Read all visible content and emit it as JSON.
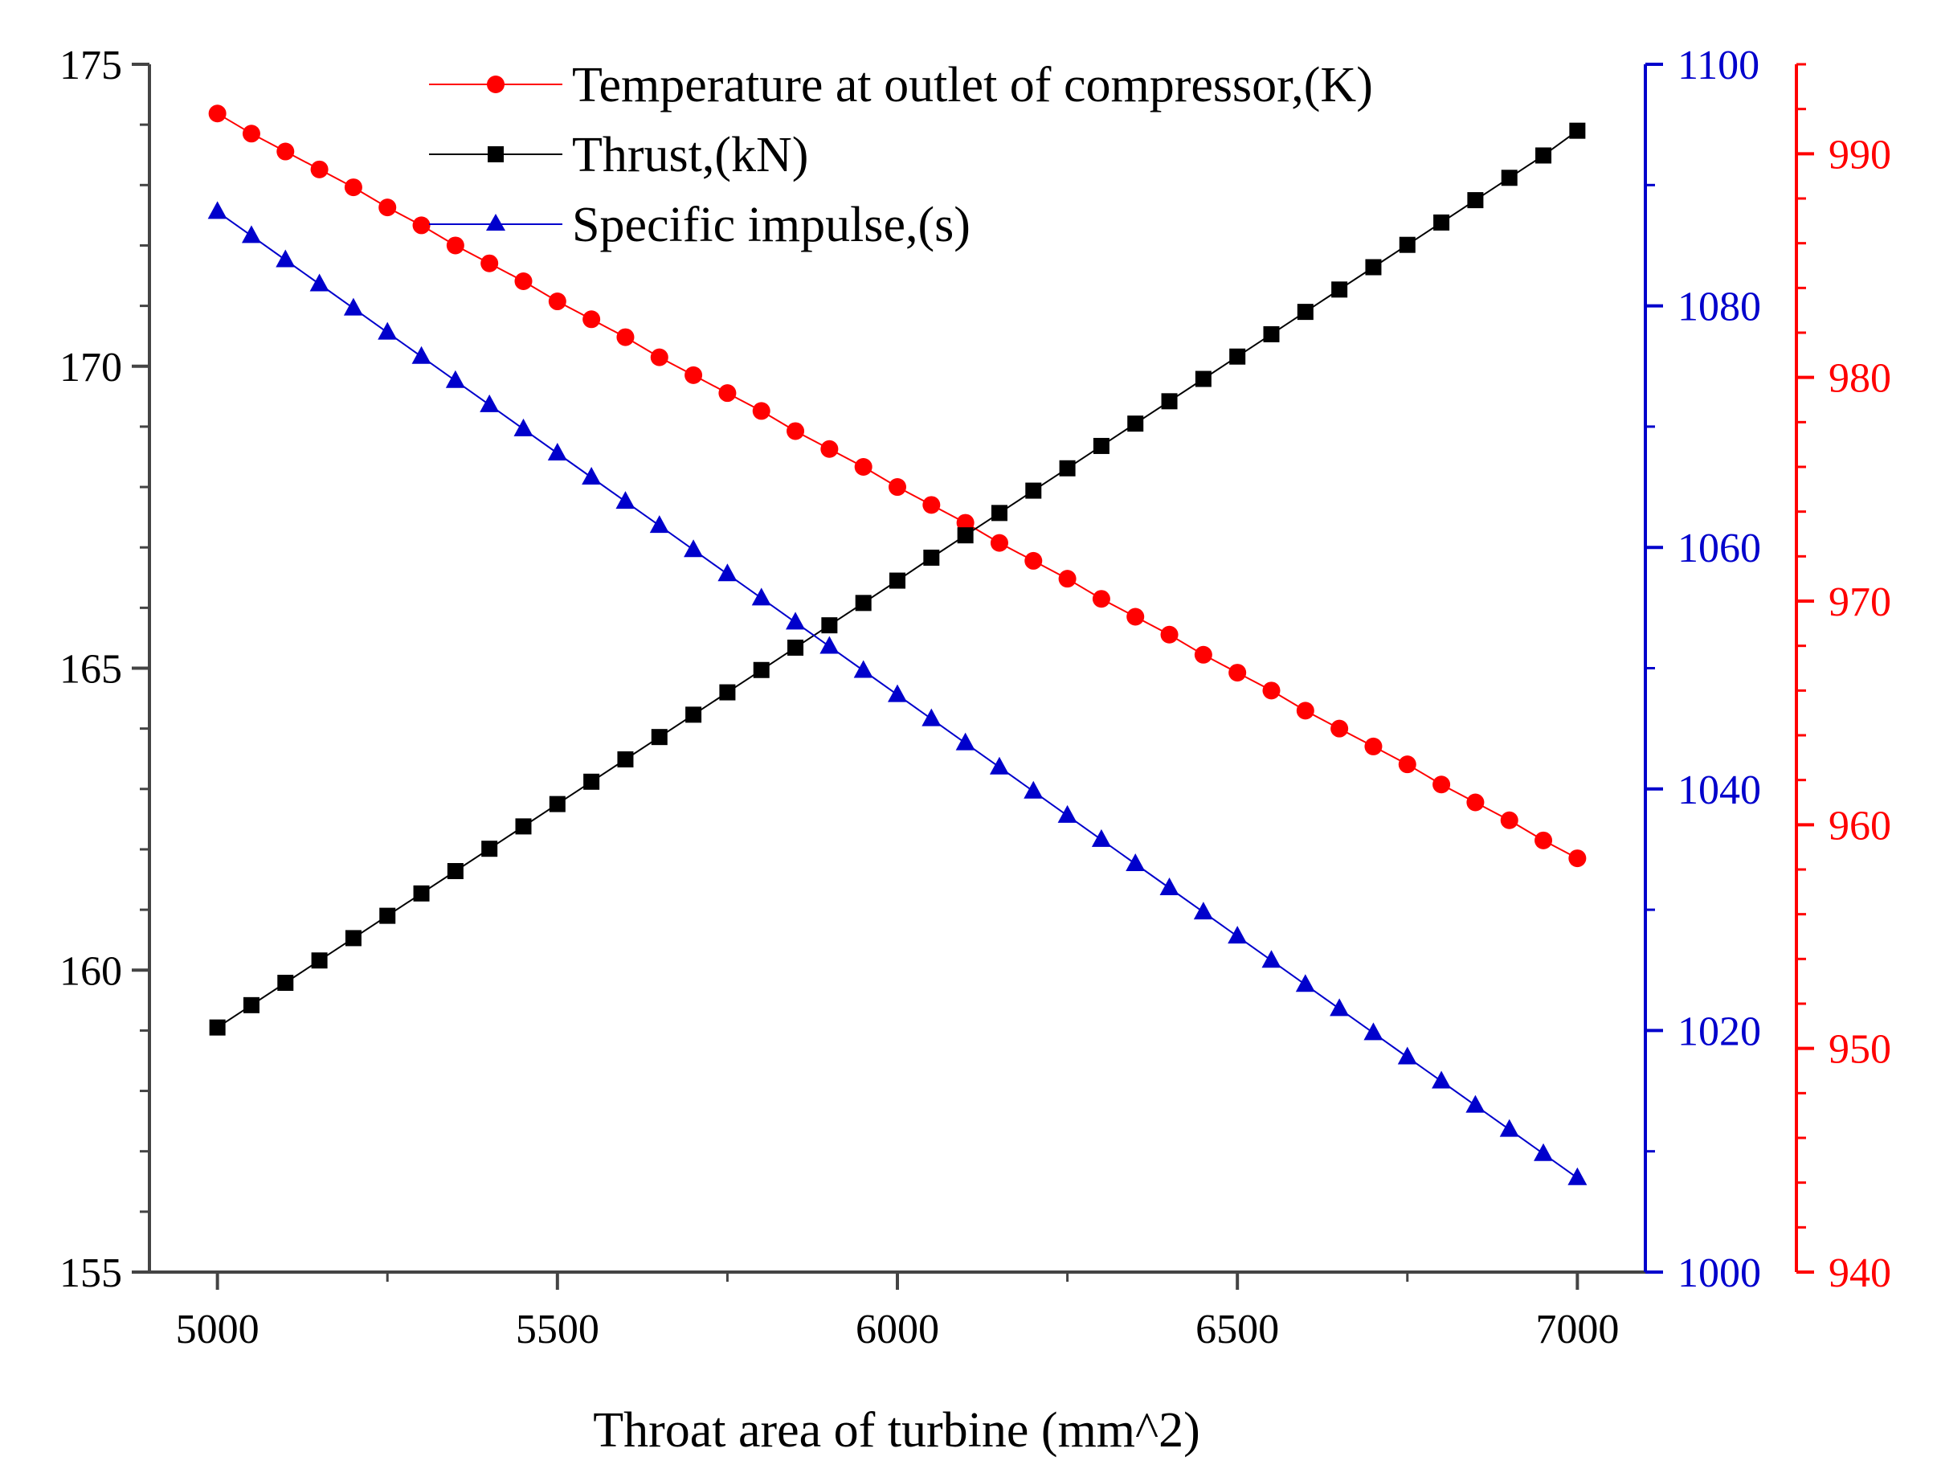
{
  "chart_data": {
    "type": "line",
    "title": "",
    "xlabel": "Throat area of turbine (mm^2)",
    "x": [
      5000,
      5050,
      5100,
      5150,
      5200,
      5250,
      5300,
      5350,
      5400,
      5450,
      5500,
      5550,
      5600,
      5650,
      5700,
      5750,
      5800,
      5850,
      5900,
      5950,
      6000,
      6050,
      6100,
      6150,
      6200,
      6250,
      6300,
      6350,
      6400,
      6450,
      6500,
      6550,
      6600,
      6650,
      6700,
      6750,
      6800,
      6850,
      6900,
      6950,
      7000
    ],
    "xlim": [
      4900,
      7100
    ],
    "xticks": [
      5000,
      5500,
      6000,
      6500,
      7000
    ],
    "axes": {
      "left": {
        "ylim": [
          155,
          175
        ],
        "ticks": [
          155,
          160,
          165,
          170,
          175
        ],
        "color": "#000000"
      },
      "right_inner": {
        "ylim": [
          1000,
          1100
        ],
        "ticks": [
          1000,
          1020,
          1040,
          1060,
          1080,
          1100
        ],
        "color": "#0000cc"
      },
      "right_outer": {
        "ylim": [
          940,
          994
        ],
        "ticks": [
          940,
          950,
          960,
          970,
          980,
          990
        ],
        "color": "#ff0000"
      }
    },
    "legend_position": "top-center",
    "series": [
      {
        "name": "Temperature at outlet of compressor,(K)",
        "axis": "right_outer",
        "color": "#ff0000",
        "marker": "circle",
        "values": [
          991.8,
          990.9,
          990.1,
          989.3,
          988.5,
          987.6,
          986.8,
          985.9,
          985.1,
          984.3,
          983.4,
          982.6,
          981.8,
          980.9,
          980.1,
          979.3,
          978.5,
          977.6,
          976.8,
          976.0,
          975.1,
          974.3,
          973.5,
          972.6,
          971.8,
          971.0,
          970.1,
          969.3,
          968.5,
          967.6,
          966.8,
          966.0,
          965.1,
          964.3,
          963.5,
          962.7,
          961.8,
          961.0,
          960.2,
          959.3,
          958.5
        ]
      },
      {
        "name": "Thrust,(kN)",
        "axis": "left",
        "color": "#000000",
        "marker": "square",
        "values": [
          159.05,
          159.42,
          159.79,
          160.16,
          160.53,
          160.9,
          161.27,
          161.64,
          162.01,
          162.38,
          162.75,
          163.12,
          163.49,
          163.86,
          164.23,
          164.6,
          164.97,
          165.34,
          165.71,
          166.08,
          166.45,
          166.83,
          167.2,
          167.57,
          167.94,
          168.31,
          168.68,
          169.05,
          169.42,
          169.79,
          170.16,
          170.53,
          170.9,
          171.27,
          171.64,
          172.01,
          172.38,
          172.75,
          173.12,
          173.49,
          173.9
        ]
      },
      {
        "name": "Specific impulse,(s)",
        "axis": "right_inner",
        "color": "#0000cc",
        "marker": "triangle",
        "values": [
          1087.8,
          1085.8,
          1083.8,
          1081.8,
          1079.8,
          1077.8,
          1075.8,
          1073.8,
          1071.8,
          1069.8,
          1067.8,
          1065.8,
          1063.8,
          1061.8,
          1059.8,
          1057.8,
          1055.8,
          1053.8,
          1051.8,
          1049.8,
          1047.8,
          1045.8,
          1043.8,
          1041.8,
          1039.8,
          1037.8,
          1035.8,
          1033.8,
          1031.8,
          1029.8,
          1027.8,
          1025.8,
          1023.8,
          1021.8,
          1019.8,
          1017.8,
          1015.8,
          1013.8,
          1011.8,
          1009.8,
          1007.8
        ]
      }
    ]
  }
}
